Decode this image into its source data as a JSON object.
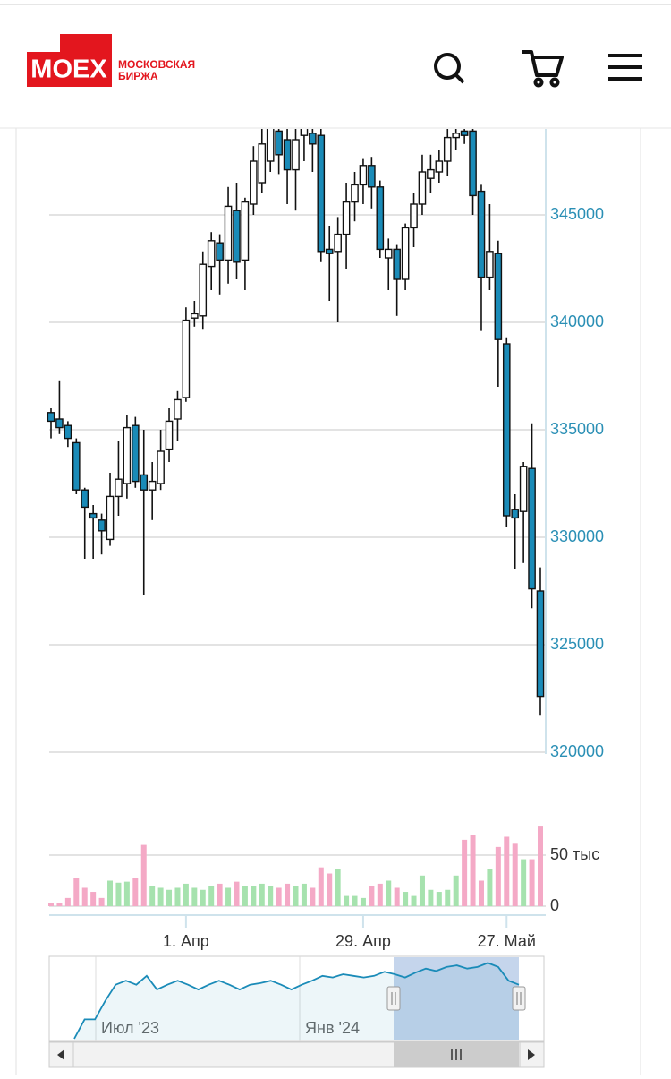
{
  "header": {
    "logo": "MOEX",
    "logo_line1": "МОСКОВСКАЯ",
    "logo_line2": "БИРЖА"
  },
  "chart_data": {
    "type": "candlestick",
    "categories": [
      null,
      null,
      null,
      null,
      null,
      null,
      null,
      null,
      null,
      null,
      null,
      null,
      null,
      null,
      null,
      null,
      "1. Апр",
      null,
      null,
      null,
      null,
      null,
      null,
      null,
      null,
      null,
      null,
      null,
      null,
      null,
      null,
      null,
      null,
      null,
      null,
      null,
      null,
      "29. Апр",
      null,
      null,
      null,
      null,
      null,
      null,
      null,
      null,
      null,
      null,
      null,
      null,
      null,
      null,
      null,
      null,
      "27. Май",
      null,
      null,
      null,
      null
    ],
    "open": [
      335800,
      335500,
      335200,
      334400,
      332200,
      331100,
      330800,
      329900,
      331900,
      332500,
      335200,
      332900,
      332200,
      332500,
      334100,
      335500,
      336500,
      340200,
      340300,
      342600,
      343700,
      342900,
      345200,
      342900,
      345500,
      346500,
      347500,
      348900,
      348500,
      347100,
      348700,
      348800,
      348700,
      343400,
      343300,
      344100,
      345600,
      346400,
      347300,
      346300,
      343000,
      343400,
      342000,
      344400,
      345500,
      346700,
      347000,
      347500,
      348600,
      348900,
      348900,
      346100,
      342100,
      343200,
      339000,
      331300,
      331200,
      333200,
      327500
    ],
    "high": [
      336000,
      337300,
      335400,
      334600,
      332300,
      331500,
      331100,
      333000,
      334500,
      335700,
      335600,
      335000,
      333500,
      335000,
      336000,
      336800,
      340700,
      341000,
      343300,
      344200,
      344100,
      346300,
      346500,
      345800,
      348200,
      349500,
      350000,
      350000,
      349300,
      349000,
      350000,
      349200,
      349200,
      344500,
      344900,
      346500,
      347000,
      347600,
      347700,
      346600,
      343900,
      343600,
      344600,
      346000,
      347800,
      347800,
      348000,
      349200,
      349400,
      349200,
      349500,
      346400,
      345500,
      343800,
      339300,
      332000,
      333500,
      335300,
      328600
    ],
    "low": [
      334600,
      334800,
      334200,
      332000,
      329000,
      329000,
      329200,
      329600,
      331000,
      331800,
      332300,
      327300,
      330800,
      332200,
      333500,
      334500,
      336300,
      339800,
      339700,
      341500,
      341300,
      341800,
      342000,
      341500,
      345000,
      346000,
      347000,
      346900,
      345500,
      345200,
      347500,
      347000,
      342800,
      341000,
      340000,
      342500,
      344700,
      345500,
      345300,
      343000,
      341500,
      340300,
      341500,
      343500,
      345000,
      346000,
      346500,
      346800,
      348000,
      348300,
      345000,
      339600,
      341500,
      337000,
      330500,
      328500,
      328800,
      326700,
      321700
    ],
    "close": [
      335400,
      335100,
      334600,
      332200,
      331400,
      330900,
      330300,
      331900,
      332700,
      335100,
      332600,
      332200,
      332600,
      334000,
      335400,
      336400,
      340100,
      340400,
      342700,
      343800,
      342900,
      345400,
      342800,
      345600,
      347500,
      348300,
      349200,
      347800,
      347100,
      348500,
      349100,
      348300,
      343300,
      343200,
      344100,
      345600,
      346400,
      347300,
      346300,
      343400,
      343400,
      342000,
      344400,
      345500,
      347000,
      347100,
      347500,
      348600,
      348800,
      348700,
      345900,
      342100,
      343300,
      339200,
      331000,
      330900,
      333300,
      327600,
      322600
    ],
    "ylim": [
      320000,
      349000
    ],
    "yticks": [
      320000,
      325000,
      330000,
      335000,
      340000,
      345000
    ],
    "up_color": "#ffffff",
    "down_color": "#1a8bb8",
    "grid": true,
    "volume": [
      3000,
      3000,
      8000,
      28000,
      18000,
      14000,
      8000,
      25000,
      23000,
      24000,
      28000,
      60000,
      20000,
      18000,
      16000,
      18000,
      22000,
      18000,
      16000,
      20000,
      22000,
      18000,
      24000,
      20000,
      20000,
      22000,
      20000,
      18000,
      22000,
      20000,
      22000,
      18000,
      38000,
      32000,
      36000,
      10000,
      10000,
      8000,
      20000,
      22000,
      25000,
      18000,
      14000,
      10000,
      30000,
      16000,
      14000,
      16000,
      30000,
      65000,
      70000,
      25000,
      36000,
      58000,
      68000,
      62000,
      46000,
      46000,
      78000
    ],
    "volume_ylim": [
      0,
      100000
    ],
    "volume_yticks": [
      0,
      {
        "value": 50000,
        "label": "50 тыс"
      }
    ],
    "volume_up_color": "#a6e2ae",
    "volume_down_color": "#f4a9c6",
    "navigator": {
      "labels": [
        "Июл '23",
        "Янв '24"
      ],
      "color": "#1a8bb8",
      "ylim": [
        0,
        100
      ],
      "values": [
        0,
        24,
        24,
        47,
        67,
        72,
        67,
        78,
        61,
        67,
        72,
        67,
        61,
        67,
        72,
        67,
        61,
        67,
        69,
        72,
        67,
        61,
        67,
        72,
        78,
        76,
        80,
        78,
        76,
        78,
        83,
        80,
        76,
        82,
        87,
        84,
        89,
        91,
        87,
        89,
        94,
        89,
        72,
        67
      ]
    }
  }
}
